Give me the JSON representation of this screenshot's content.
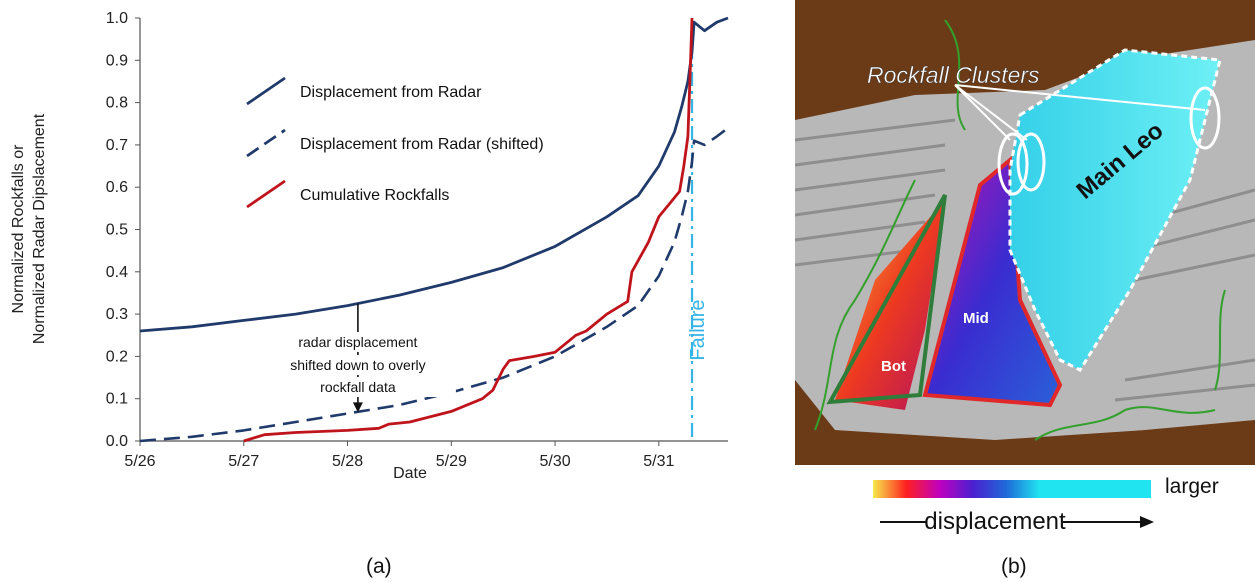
{
  "captions": {
    "a": "(a)",
    "b": "(b)"
  },
  "chart_data": {
    "type": "line",
    "xlabel": "Date",
    "ylabel_lines": [
      "Normalized Rockfalls or",
      "Normalized Radar Dipslacement"
    ],
    "x_ticks": [
      "5/26",
      "5/27",
      "5/28",
      "5/29",
      "5/30",
      "5/31"
    ],
    "xlim": [
      "5/26 00:00",
      "5/31 16:00"
    ],
    "ylim": [
      0,
      1
    ],
    "y_ticks": [
      "0.0",
      "0.1",
      "0.2",
      "0.3",
      "0.4",
      "0.5",
      "0.6",
      "0.7",
      "0.8",
      "0.9",
      "1.0"
    ],
    "grid": false,
    "legend_position": "upper-center",
    "series": [
      {
        "name": "Displacement from Radar",
        "style": "solid",
        "color": "#1f3a6b",
        "x": [
          "5/26 00:00",
          "5/26 12:00",
          "5/27 00:00",
          "5/27 12:00",
          "5/28 00:00",
          "5/28 12:00",
          "5/29 00:00",
          "5/29 12:00",
          "5/30 00:00",
          "5/30 12:00",
          "5/30 19:12",
          "5/31 00:00",
          "5/31 03:36",
          "5/31 05:17",
          "5/31 06:43",
          "5/31 07:41",
          "5/31 08:10",
          "5/31 10:34",
          "5/31 13:26",
          "5/31 16:00"
        ],
        "y": [
          0.26,
          0.27,
          0.285,
          0.3,
          0.32,
          0.345,
          0.375,
          0.41,
          0.46,
          0.53,
          0.58,
          0.65,
          0.73,
          0.79,
          0.85,
          0.92,
          0.99,
          0.97,
          0.99,
          1.0
        ]
      },
      {
        "name": "Displacement from Radar (shifted)",
        "style": "dashed",
        "color": "#1f3a6b",
        "x": [
          "5/26 00:00",
          "5/26 12:00",
          "5/27 00:00",
          "5/27 12:00",
          "5/28 00:00",
          "5/28 12:00",
          "5/29 00:00",
          "5/29 12:00",
          "5/30 00:00",
          "5/30 12:00",
          "5/30 19:12",
          "5/31 00:00",
          "5/31 03:36",
          "5/31 05:17",
          "5/31 06:43",
          "5/31 07:41",
          "5/31 08:10",
          "5/31 10:34",
          "5/31 13:26",
          "5/31 16:00"
        ],
        "y": [
          0.0,
          0.01,
          0.025,
          0.045,
          0.065,
          0.085,
          0.115,
          0.15,
          0.2,
          0.27,
          0.32,
          0.39,
          0.47,
          0.53,
          0.59,
          0.66,
          0.71,
          0.7,
          0.72,
          0.74
        ]
      },
      {
        "name": "Cumulative Rockfalls",
        "style": "solid",
        "color": "#c0141c",
        "x": [
          "5/27 00:00",
          "5/27 04:48",
          "5/27 12:00",
          "5/28 00:00",
          "5/28 07:12",
          "5/28 09:36",
          "5/28 14:24",
          "5/29 00:00",
          "5/29 07:12",
          "5/29 09:36",
          "5/29 12:00",
          "5/29 13:26",
          "5/29 19:12",
          "5/30 00:00",
          "5/30 04:48",
          "5/30 07:12",
          "5/30 12:00",
          "5/30 16:48",
          "5/30 17:46",
          "5/30 21:36",
          "5/31 00:00",
          "5/31 02:24",
          "5/31 04:48",
          "5/31 05:46",
          "5/31 06:43",
          "5/31 07:12",
          "5/31 07:41"
        ],
        "y": [
          0.0,
          0.015,
          0.02,
          0.025,
          0.03,
          0.04,
          0.045,
          0.07,
          0.1,
          0.12,
          0.17,
          0.19,
          0.2,
          0.21,
          0.25,
          0.26,
          0.3,
          0.33,
          0.4,
          0.47,
          0.53,
          0.56,
          0.59,
          0.65,
          0.72,
          0.86,
          1.0
        ]
      }
    ],
    "annotations": {
      "failure_label": "Failure",
      "failure_x": "5/31 07:41",
      "arrow_x": "5/28 02:24",
      "arrow_y_from": 0.325,
      "arrow_y_to": 0.07,
      "arrow_text": [
        "radar displacement",
        "shifted down to overly",
        "rockfall data"
      ]
    }
  },
  "panel_b": {
    "labels": {
      "rockfall_clusters": "Rockfall Clusters",
      "main_leo": "Main Leo",
      "mid": "Mid",
      "bot": "Bot"
    },
    "colorbar": {
      "label": "displacement",
      "end_label": "larger",
      "colors": [
        "#f5e94a",
        "#ff2020",
        "#c000c0",
        "#4a20d0",
        "#1f6ad8",
        "#20e5f0"
      ]
    }
  }
}
